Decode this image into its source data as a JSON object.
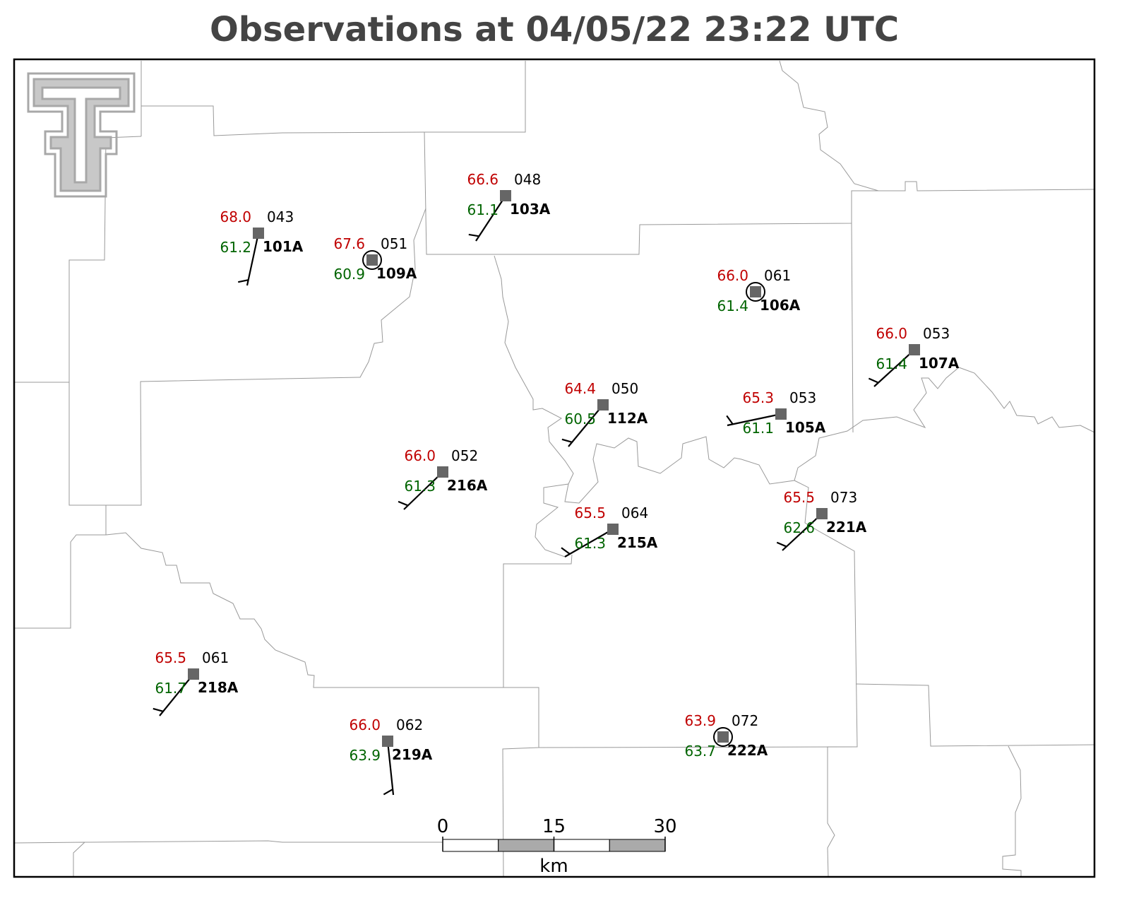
{
  "title": "Observations at 04/05/22 23:22 UTC",
  "stations": [
    {
      "id": "101A",
      "temperature": "68.0",
      "dewpoint": "61.2",
      "pressure": "043"
    },
    {
      "id": "109A",
      "temperature": "67.6",
      "dewpoint": "60.9",
      "pressure": "051"
    },
    {
      "id": "103A",
      "temperature": "66.6",
      "dewpoint": "61.1",
      "pressure": "048"
    },
    {
      "id": "106A",
      "temperature": "66.0",
      "dewpoint": "61.4",
      "pressure": "061"
    },
    {
      "id": "107A",
      "temperature": "66.0",
      "dewpoint": "61.4",
      "pressure": "053"
    },
    {
      "id": "112A",
      "temperature": "64.4",
      "dewpoint": "60.5",
      "pressure": "050"
    },
    {
      "id": "105A",
      "temperature": "65.3",
      "dewpoint": "61.1",
      "pressure": "053"
    },
    {
      "id": "216A",
      "temperature": "66.0",
      "dewpoint": "61.3",
      "pressure": "052"
    },
    {
      "id": "215A",
      "temperature": "65.5",
      "dewpoint": "61.3",
      "pressure": "064"
    },
    {
      "id": "221A",
      "temperature": "65.5",
      "dewpoint": "62.6",
      "pressure": "073"
    },
    {
      "id": "218A",
      "temperature": "65.5",
      "dewpoint": "61.7",
      "pressure": "061"
    },
    {
      "id": "219A",
      "temperature": "66.0",
      "dewpoint": "63.9",
      "pressure": "062"
    },
    {
      "id": "222A",
      "temperature": "63.9",
      "dewpoint": "63.7",
      "pressure": "072"
    }
  ],
  "scale_bar": {
    "ticks": [
      0,
      15,
      30
    ],
    "unit": "km"
  }
}
